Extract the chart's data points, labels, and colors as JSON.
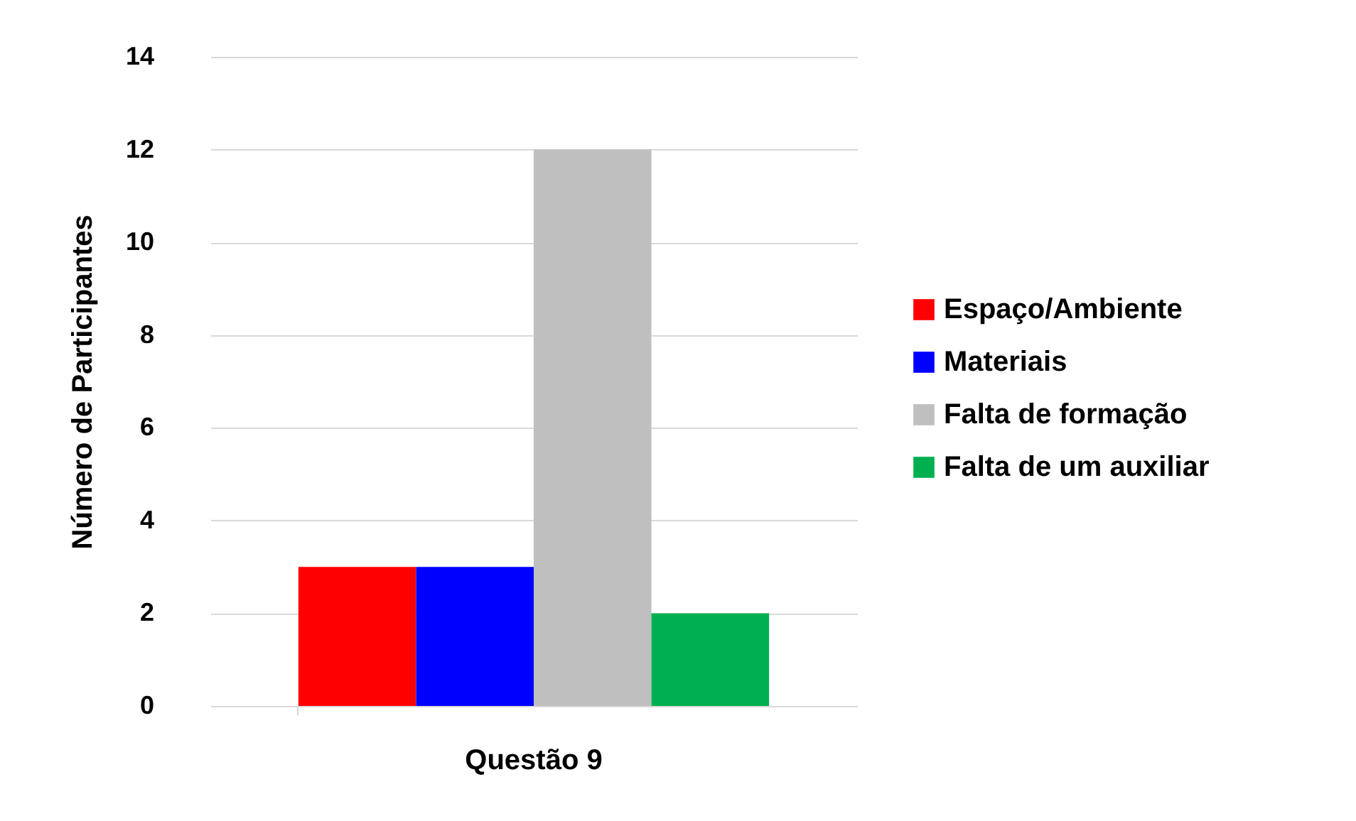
{
  "chart_data": {
    "type": "bar",
    "categories": [
      "Questão 9"
    ],
    "ylabel": "Número de Participantes",
    "series": [
      {
        "name": "Espaço/Ambiente",
        "color": "#ff0000",
        "values": [
          3
        ]
      },
      {
        "name": "Materiais",
        "color": "#0000ff",
        "values": [
          3
        ]
      },
      {
        "name": "Falta de formação",
        "color": "#bfbfbf",
        "values": [
          12
        ]
      },
      {
        "name": "Falta de um auxiliar",
        "color": "#00b050",
        "values": [
          2
        ]
      }
    ],
    "ylim": [
      0,
      14
    ],
    "yticks": [
      0,
      2,
      4,
      6,
      8,
      10,
      12,
      14
    ],
    "grid": "y",
    "legend": "right"
  }
}
